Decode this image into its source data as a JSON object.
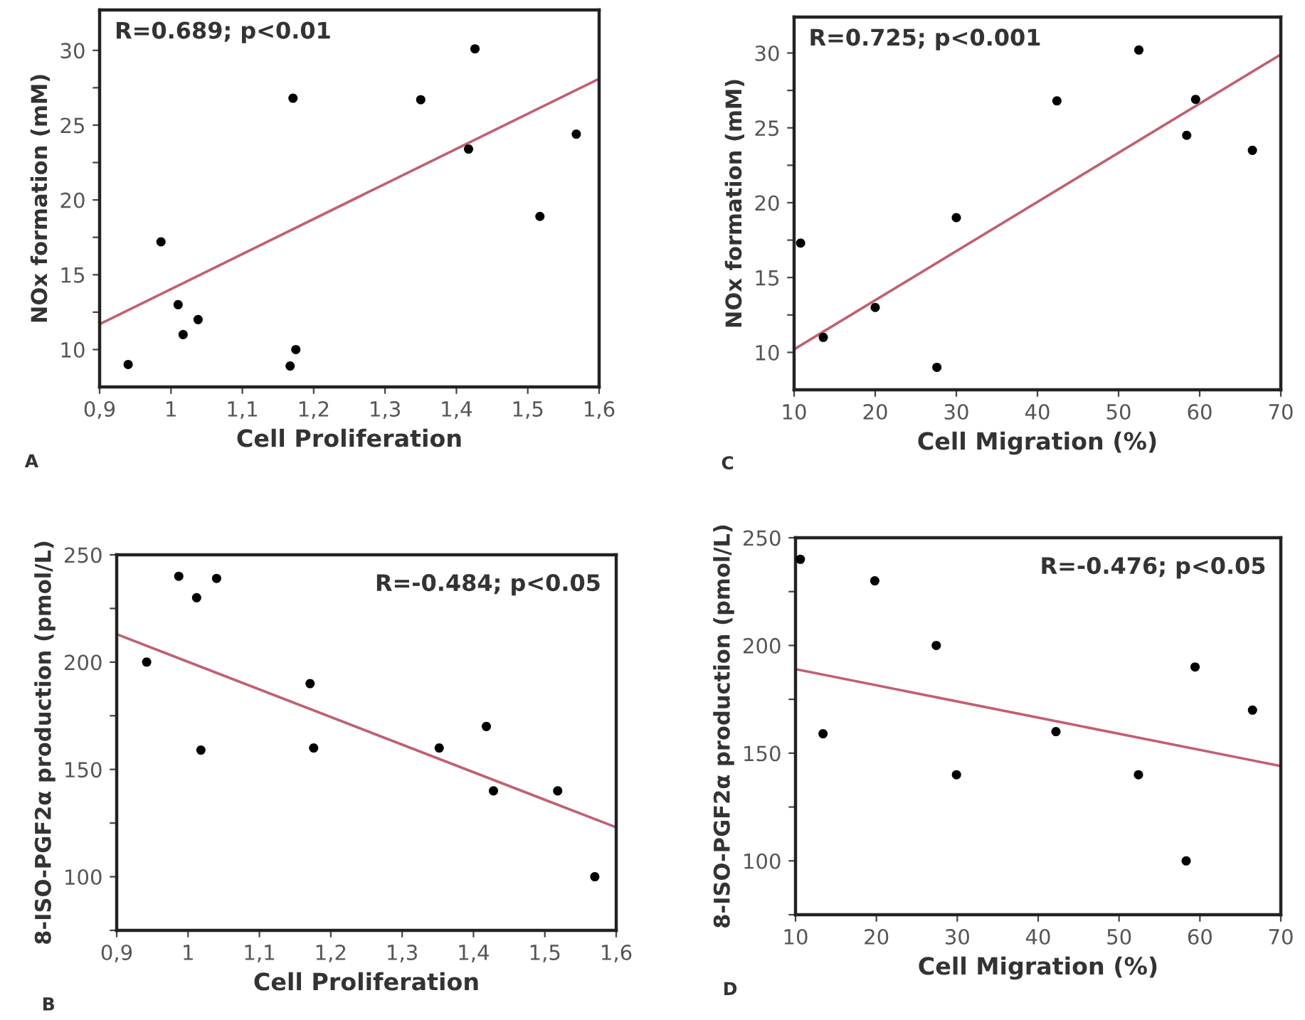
{
  "chart_data": [
    {
      "type": "scatter",
      "xlabel": "Cell Proliferation",
      "ylabel": "NOx formation (mM)",
      "annotations": [
        "R=0.689; p<0.01",
        "A"
      ],
      "xlim": [
        0.9,
        1.6
      ],
      "ylim": [
        7.5,
        32.7
      ],
      "xticks": [
        {
          "value": 0.9,
          "label": "0,9"
        },
        {
          "value": 1.0,
          "label": "1"
        },
        {
          "value": 1.1,
          "label": "1,1"
        },
        {
          "value": 1.2,
          "label": "1,2"
        },
        {
          "value": 1.3,
          "label": "1,3"
        },
        {
          "value": 1.4,
          "label": "1,4"
        },
        {
          "value": 1.5,
          "label": "1,5"
        },
        {
          "value": 1.6,
          "label": "1,6"
        }
      ],
      "yticks": [
        10,
        {
          "value": 12.5,
          "label": null
        },
        15,
        {
          "value": 17.5,
          "label": null
        },
        20,
        {
          "value": 22.5,
          "label": null
        },
        25,
        {
          "value": 27.5,
          "label": null
        },
        30
      ],
      "grid": false,
      "legend": false,
      "marker": "circle",
      "series": [
        {
          "type": "scatter",
          "color": "#000000",
          "x": [
            0.94,
            0.986,
            1.01,
            1.017,
            1.038,
            1.167,
            1.175,
            1.171,
            1.35,
            1.426,
            1.417,
            1.517,
            1.568
          ],
          "values": [
            9.0,
            17.2,
            13.0,
            11.0,
            12.0,
            8.9,
            10.0,
            26.8,
            26.7,
            30.1,
            23.4,
            18.9,
            24.4
          ]
        },
        {
          "type": "line",
          "marker": "none",
          "color": "#c06070",
          "x": [
            0.9,
            1.6
          ],
          "values": [
            11.7,
            28.1
          ]
        }
      ]
    },
    {
      "type": "scatter",
      "xlabel": "Cell Migration (%)",
      "ylabel": "NOx formation (mM)",
      "annotations": [
        "R=0.725; p<0.001",
        "C"
      ],
      "xlim": [
        10,
        70
      ],
      "ylim": [
        7.5,
        32.4
      ],
      "xticks": [
        10,
        20,
        30,
        40,
        50,
        60,
        70
      ],
      "yticks": [
        10,
        {
          "value": 12.5,
          "label": null
        },
        15,
        {
          "value": 17.5,
          "label": null
        },
        20,
        {
          "value": 22.5,
          "label": null
        },
        25,
        {
          "value": 27.5,
          "label": null
        },
        30
      ],
      "grid": false,
      "legend": false,
      "marker": "circle",
      "series": [
        {
          "type": "scatter",
          "color": "#000000",
          "x": [
            10.8,
            13.6,
            20.0,
            27.6,
            30.0,
            42.4,
            52.5,
            59.5,
            58.4,
            66.5
          ],
          "values": [
            17.3,
            11.0,
            13.0,
            9.0,
            19.0,
            26.8,
            30.2,
            26.9,
            24.5,
            23.5
          ]
        },
        {
          "type": "line",
          "marker": "none",
          "color": "#c06070",
          "x": [
            10,
            70
          ],
          "values": [
            10.2,
            29.9
          ]
        }
      ]
    },
    {
      "type": "scatter",
      "xlabel": "Cell Proliferation",
      "ylabel": "8-ISO-PGF2α production (pmol/L)",
      "annotations": [
        "R=-0.484; p<0.05",
        "B"
      ],
      "xlim": [
        0.9,
        1.6
      ],
      "ylim": [
        75,
        250
      ],
      "xticks": [
        {
          "value": 0.9,
          "label": "0,9"
        },
        {
          "value": 1.0,
          "label": "1"
        },
        {
          "value": 1.1,
          "label": "1,1"
        },
        {
          "value": 1.2,
          "label": "1,2"
        },
        {
          "value": 1.3,
          "label": "1,3"
        },
        {
          "value": 1.4,
          "label": "1,4"
        },
        {
          "value": 1.5,
          "label": "1,5"
        },
        {
          "value": 1.6,
          "label": "1,6"
        }
      ],
      "yticks": [
        {
          "value": 75,
          "label": null
        },
        100,
        {
          "value": 125,
          "label": null
        },
        150,
        {
          "value": 175,
          "label": null
        },
        200,
        {
          "value": 225,
          "label": null
        },
        250
      ],
      "grid": false,
      "legend": false,
      "marker": "circle",
      "series": [
        {
          "type": "scatter",
          "color": "#000000",
          "x": [
            0.942,
            0.987,
            1.012,
            1.04,
            1.018,
            1.171,
            1.176,
            1.352,
            1.418,
            1.428,
            1.518,
            1.57
          ],
          "values": [
            200,
            240,
            230,
            239,
            159,
            190,
            160,
            160,
            170,
            140,
            140,
            100
          ]
        },
        {
          "type": "line",
          "marker": "none",
          "color": "#c06070",
          "x": [
            0.9,
            1.6
          ],
          "values": [
            213,
            123
          ]
        }
      ]
    },
    {
      "type": "scatter",
      "xlabel": "Cell Migration (%)",
      "ylabel": "8-ISO-PGF2α production (pmol/L)",
      "annotations": [
        "R=-0.476; p<0.05",
        "D"
      ],
      "xlim": [
        10,
        70
      ],
      "ylim": [
        75,
        250
      ],
      "xticks": [
        10,
        20,
        30,
        40,
        50,
        60,
        70
      ],
      "yticks": [
        {
          "value": 75,
          "label": null
        },
        100,
        {
          "value": 125,
          "label": null
        },
        150,
        {
          "value": 175,
          "label": null
        },
        200,
        {
          "value": 225,
          "label": null
        },
        250
      ],
      "grid": false,
      "legend": false,
      "marker": "circle",
      "series": [
        {
          "type": "scatter",
          "color": "#000000",
          "x": [
            10.6,
            13.4,
            19.8,
            27.4,
            29.9,
            42.2,
            52.4,
            59.4,
            58.3,
            66.5
          ],
          "values": [
            240,
            159,
            230,
            200,
            140,
            160,
            140,
            190,
            100,
            170
          ]
        },
        {
          "type": "line",
          "marker": "none",
          "color": "#c06070",
          "x": [
            10,
            70
          ],
          "values": [
            189,
            144
          ]
        }
      ]
    }
  ]
}
